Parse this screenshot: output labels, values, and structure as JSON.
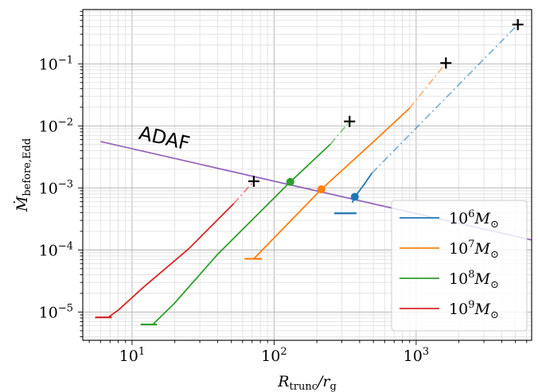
{
  "chart_data": {
    "type": "line",
    "xlabel": {
      "main": "R",
      "sub": "trunc",
      "rest": "/r",
      "sub2": "g"
    },
    "ylabel": {
      "main": "Ṁ",
      "sub": "before,Edd"
    },
    "xscale": "log",
    "yscale": "log",
    "xlim": [
      4.5,
      6500
    ],
    "ylim": [
      3.5e-06,
      0.75
    ],
    "x_ticks": [
      {
        "value": 10,
        "base": "10",
        "exp": "1"
      },
      {
        "value": 100,
        "base": "10",
        "exp": "2"
      },
      {
        "value": 1000,
        "base": "10",
        "exp": "3"
      }
    ],
    "y_ticks": [
      {
        "value": 1e-05,
        "base": "10",
        "exp": "−5"
      },
      {
        "value": 0.0001,
        "base": "10",
        "exp": "−4"
      },
      {
        "value": 0.001,
        "base": "10",
        "exp": "−3"
      },
      {
        "value": 0.01,
        "base": "10",
        "exp": "−2"
      },
      {
        "value": 0.1,
        "base": "10",
        "exp": "−1"
      }
    ],
    "grid": true,
    "legend_position": "lower-right",
    "series": [
      {
        "name": "10^6 M☉",
        "label_base": "10",
        "label_exp": "6",
        "label_unit": "M",
        "label_sub": "⊙",
        "color": "#1f77b4",
        "solid": [
          [
            355,
            0.00058
          ],
          [
            370,
            0.00072
          ],
          [
            420,
            0.00105
          ],
          [
            490,
            0.00175
          ]
        ],
        "dashdot": [
          [
            490,
            0.00175
          ],
          [
            5200,
            0.43
          ]
        ],
        "floor": {
          "x": [
            265,
            380
          ],
          "y": 0.00039,
          "x_end": 355
        },
        "circle": [
          370,
          0.00072
        ],
        "cross": [
          5200,
          0.43
        ]
      },
      {
        "name": "10^7 M☉",
        "label_base": "10",
        "label_exp": "7",
        "label_unit": "M",
        "label_sub": "⊙",
        "color": "#ff7f0e",
        "solid": [
          [
            72,
            7.2e-05
          ],
          [
            215,
            0.00095
          ],
          [
            490,
            0.0053
          ],
          [
            900,
            0.0193
          ]
        ],
        "dashdot": [
          [
            900,
            0.0193
          ],
          [
            1620,
            0.103
          ]
        ],
        "floor": {
          "x": [
            62,
            82
          ],
          "y": 7.2e-05,
          "x_end": 72
        },
        "circle": [
          215,
          0.00095
        ],
        "cross": [
          1620,
          0.103
        ]
      },
      {
        "name": "10^8 M☉",
        "label_base": "10",
        "label_exp": "8",
        "label_unit": "M",
        "label_sub": "⊙",
        "color": "#2ca02c",
        "solid": [
          [
            14,
            6.3e-06
          ],
          [
            20,
            1.4e-05
          ],
          [
            40,
            8.5e-05
          ],
          [
            130,
            0.00125
          ],
          [
            250,
            0.0051
          ]
        ],
        "dashdot": [
          [
            250,
            0.0051
          ],
          [
            340,
            0.0118
          ]
        ],
        "floor": {
          "x": [
            11.5,
            15
          ],
          "y": 6.3e-06,
          "x_end": 14
        },
        "circle": [
          130,
          0.00125
        ],
        "cross": [
          340,
          0.0118
        ]
      },
      {
        "name": "10^9 M☉",
        "label_base": "10",
        "label_exp": "9",
        "label_unit": "M",
        "label_sub": "⊙",
        "color": "#d62728",
        "solid": [
          [
            6.8,
            8.2e-06
          ],
          [
            8,
            1.07e-05
          ],
          [
            12,
            2.5e-05
          ],
          [
            25,
            0.000104
          ],
          [
            52,
            0.00056
          ]
        ],
        "dashdot": [
          [
            52,
            0.00056
          ],
          [
            72,
            0.00128
          ]
        ],
        "floor": {
          "x": [
            5.5,
            7.2
          ],
          "y": 8.2e-06,
          "x_end": 6.8
        },
        "cross": [
          72,
          0.00128
        ]
      }
    ],
    "adaf": {
      "label": "ADAF",
      "color": "#9467bd",
      "x": [
        6,
        6500
      ],
      "y": [
        0.0056,
        0.000145
      ],
      "label_at": [
        11,
        0.0062
      ]
    }
  }
}
